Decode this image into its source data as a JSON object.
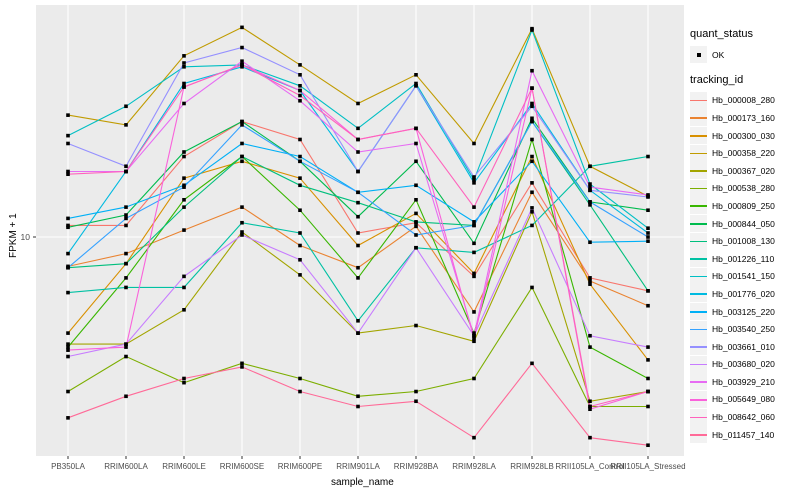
{
  "figure": {
    "panel_bg": "#EBEBEB",
    "grid_color": "#FFFFFF",
    "tick_color": "#333333",
    "tick_text_color": "#4D4D4D",
    "point_color": "#000000"
  },
  "axes": {
    "x_title": "sample_name",
    "y_title": "FPKM + 1",
    "y_tick_label": "10"
  },
  "legend": {
    "quant_title": "quant_status",
    "quant_items": [
      {
        "label": "OK"
      }
    ],
    "tracking_title": "tracking_id"
  },
  "chart_data": {
    "type": "line",
    "title": "",
    "xlabel": "sample_name",
    "ylabel": "FPKM + 1",
    "y_scale": "log10",
    "y_ticks": [
      10
    ],
    "ylim_approx": [
      1.05,
      110
    ],
    "grid": "major-on",
    "legend_position": "right",
    "point_marker": "small black square (quant_status OK)",
    "categories": [
      "PB350LA",
      "RRIM600LA",
      "RRIM600LE",
      "RRIM600SE",
      "RRIM600PE",
      "RRIM901LA",
      "RRIM928BA",
      "RRIM928LA",
      "RRIM928LB",
      "RRII105LA_Control",
      "RRII105LA_Stressed"
    ],
    "series": [
      {
        "name": "Hb_000008_280",
        "color": "#F8766D",
        "values": [
          11.2,
          11.2,
          22,
          31,
          26,
          10.4,
          11.5,
          6.8,
          17,
          6.7,
          5.9
        ]
      },
      {
        "name": "Hb_000173_160",
        "color": "#EA8331",
        "values": [
          7.5,
          8.5,
          10.7,
          13.4,
          9.2,
          7.4,
          11.1,
          4.8,
          15.5,
          6.5,
          5.1
        ]
      },
      {
        "name": "Hb_000300_030",
        "color": "#D89000",
        "values": [
          3.9,
          7.7,
          17.8,
          21,
          17.8,
          9.2,
          12.6,
          7,
          22,
          6.3,
          3
        ]
      },
      {
        "name": "Hb_000358_220",
        "color": "#C09B00",
        "values": [
          33,
          30,
          59,
          78,
          54,
          37,
          49,
          25,
          77,
          20,
          14.9
        ]
      },
      {
        "name": "Hb_000367_020",
        "color": "#A3A500",
        "values": [
          3.5,
          3.5,
          4.9,
          10.5,
          6.9,
          3.9,
          4.2,
          3.6,
          12.8,
          2,
          2.2
        ]
      },
      {
        "name": "Hb_000538_280",
        "color": "#7CAE00",
        "values": [
          2.2,
          3.1,
          2.4,
          2.9,
          2.5,
          2.1,
          2.2,
          2.5,
          6.1,
          1.9,
          1.9
        ]
      },
      {
        "name": "Hb_000809_250",
        "color": "#39B600",
        "values": [
          3.4,
          6.7,
          14.4,
          22,
          13,
          6.7,
          14.4,
          3.9,
          26,
          3.4,
          2.5
        ]
      },
      {
        "name": "Hb_000844_050",
        "color": "#00BB4E",
        "values": [
          11,
          12.4,
          23,
          31,
          21,
          12.2,
          21,
          9.4,
          32,
          14.1,
          13
        ]
      },
      {
        "name": "Hb_001008_130",
        "color": "#00BF7D",
        "values": [
          7.4,
          7.7,
          13.4,
          22,
          16.6,
          14,
          11.6,
          11.2,
          31,
          13.7,
          5.9
        ]
      },
      {
        "name": "Hb_001226_110",
        "color": "#00C1A3",
        "values": [
          5.8,
          6.1,
          6.1,
          11.5,
          10.4,
          4.4,
          9,
          8.6,
          11.2,
          20,
          22
        ]
      },
      {
        "name": "Hb_001541_150",
        "color": "#00BFC4",
        "values": [
          27,
          36,
          53,
          54,
          44,
          29,
          45,
          17.5,
          76,
          16.8,
          10.9
        ]
      },
      {
        "name": "Hb_001776_020",
        "color": "#00BAE0",
        "values": [
          8.5,
          19,
          45,
          53,
          42,
          19,
          44,
          17,
          37,
          15.8,
          10.4
        ]
      },
      {
        "name": "Hb_003125_220",
        "color": "#00B0F6",
        "values": [
          12,
          13.4,
          16.6,
          25,
          22,
          15.5,
          16.6,
          11.6,
          21,
          9.5,
          9.6
        ]
      },
      {
        "name": "Hb_003540_250",
        "color": "#35A2FF",
        "values": [
          7.4,
          12,
          16.3,
          30,
          21,
          15.5,
          10.2,
          11.2,
          31,
          14.1,
          10
        ]
      },
      {
        "name": "Hb_003661_010",
        "color": "#9590FF",
        "values": [
          25,
          20,
          55,
          64,
          49,
          19,
          44,
          18,
          36,
          15.8,
          14.8
        ]
      },
      {
        "name": "Hb_003680_020",
        "color": "#C77CFF",
        "values": [
          3.1,
          3.5,
          6.8,
          10.2,
          8,
          3.9,
          9,
          3.8,
          13.3,
          3.8,
          3.4
        ]
      },
      {
        "name": "Hb_003929_210",
        "color": "#E76BF3",
        "values": [
          19,
          19,
          37,
          56,
          38,
          23,
          25,
          3.8,
          51,
          16.3,
          15.1
        ]
      },
      {
        "name": "Hb_005649_080",
        "color": "#FA62DB",
        "values": [
          3.3,
          3.4,
          43.5,
          54,
          42,
          26,
          29,
          3.7,
          43,
          1.85,
          2.2
        ]
      },
      {
        "name": "Hb_008642_060",
        "color": "#FF62BC",
        "values": [
          18.5,
          19,
          43.5,
          54,
          40,
          26,
          29,
          13.4,
          43,
          1.9,
          2.2
        ]
      },
      {
        "name": "Hb_011457_140",
        "color": "#FF6A98",
        "values": [
          1.7,
          2.1,
          2.5,
          2.8,
          2.2,
          1.9,
          2,
          1.4,
          2.9,
          1.4,
          1.3
        ]
      }
    ]
  },
  "layout_note": "ggplot2-style parallel line plot, log10 y scale, single labeled break at 10"
}
